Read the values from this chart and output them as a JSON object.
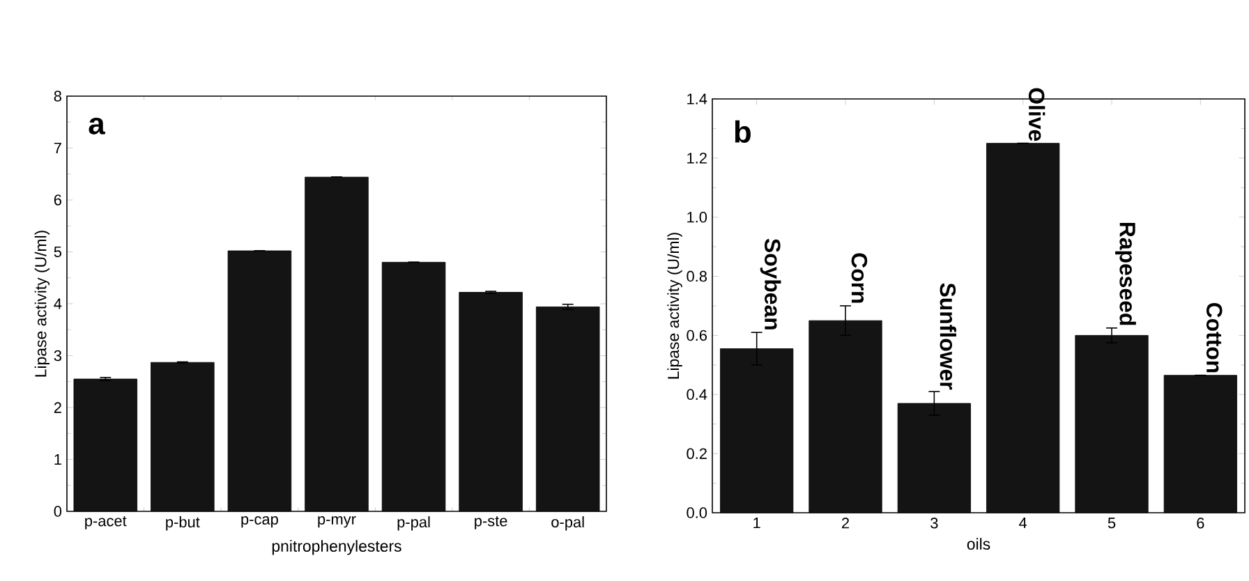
{
  "chart_data": [
    {
      "type": "bar",
      "categories": [
        "p-acet",
        "p-but",
        "p-cap",
        "p-myr",
        "p-pal",
        "p-ste",
        "o-pal"
      ],
      "values": [
        2.55,
        2.87,
        5.02,
        6.44,
        4.8,
        4.22,
        3.94
      ],
      "errors": [
        0.03,
        0.01,
        null,
        null,
        null,
        0.02,
        0.05
      ],
      "color": "#141414",
      "ylim": [
        0,
        8
      ],
      "yticks": [
        0,
        1,
        2,
        3,
        4,
        5,
        6,
        7,
        8
      ],
      "xlabel": "pnitrophenylesters",
      "ylabel": "Lipase activity (U/ml)",
      "annotations": [
        "a"
      ]
    },
    {
      "type": "bar",
      "categories": [
        "1",
        "2",
        "3",
        "4",
        "5",
        "6"
      ],
      "values": [
        0.555,
        0.65,
        0.37,
        1.25,
        0.6,
        0.465
      ],
      "errors": [
        0.055,
        0.05,
        0.04,
        null,
        0.025,
        null
      ],
      "color": "#141414",
      "ylim": [
        0,
        1.4
      ],
      "yticks": [
        {
          "value": 0,
          "label": "0.0"
        },
        0.2,
        0.4,
        0.6,
        0.8,
        {
          "value": 1,
          "label": "1.0"
        },
        1.2,
        1.4
      ],
      "xlabel": "oils",
      "ylabel": "Lipase activity (U/ml)",
      "annotations": [
        "b",
        "Soybean",
        "Corn",
        "Sunflower",
        "Olive",
        "Rapeseed",
        "Cotton"
      ]
    }
  ]
}
